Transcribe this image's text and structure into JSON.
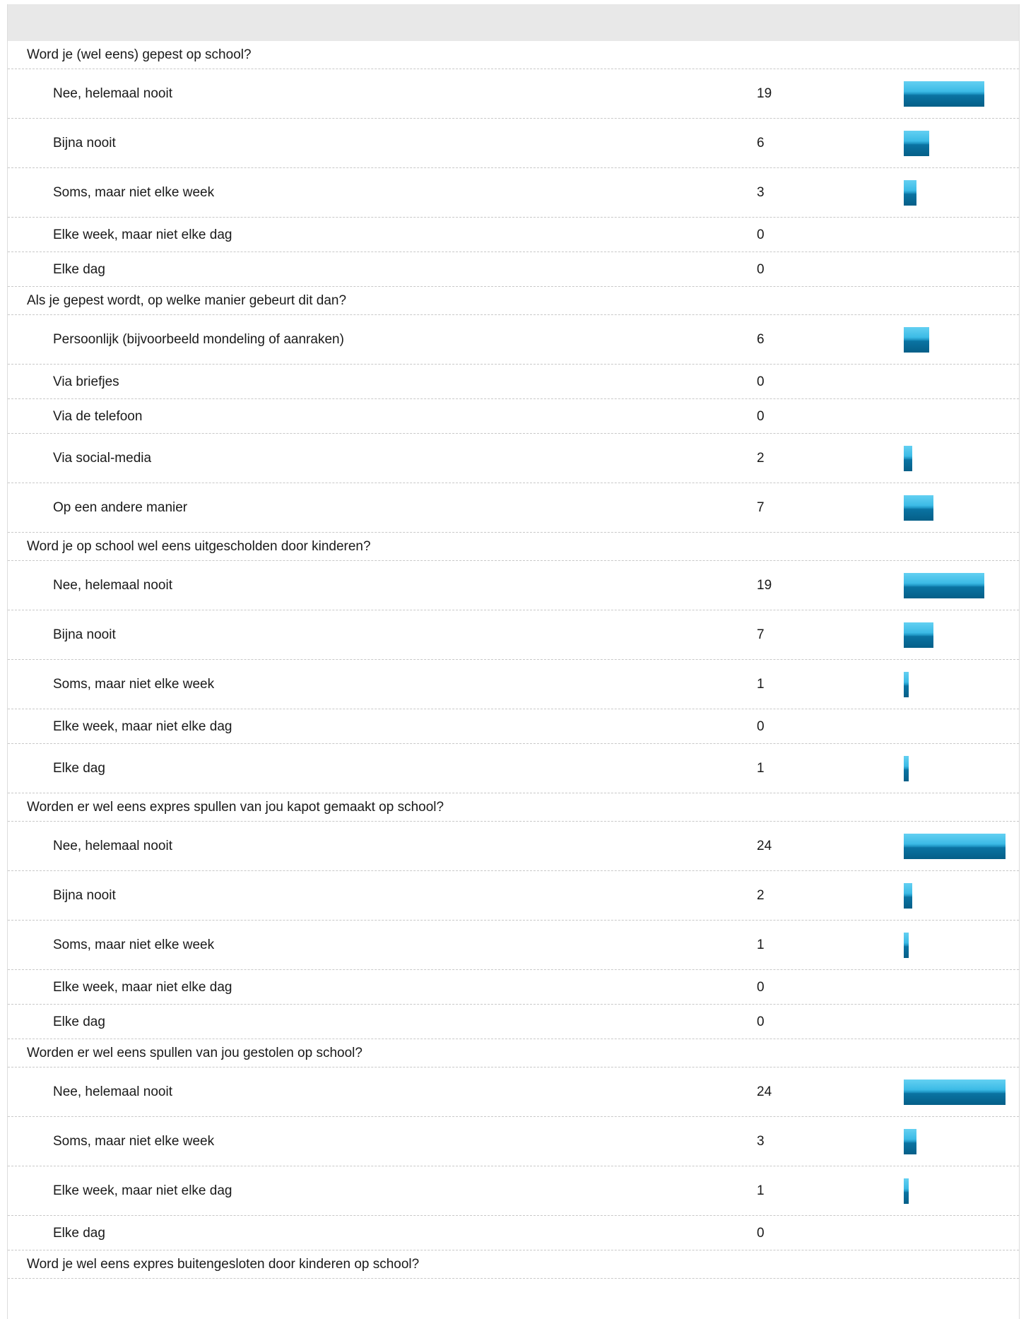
{
  "chart_data": {
    "type": "bar",
    "orientation": "horizontal",
    "max_value": 24,
    "bar_color": "#1a9ad0",
    "questions": [
      {
        "question": "Word je (wel eens) gepest op school?",
        "answers": [
          {
            "label": "Nee, helemaal nooit",
            "value": 19
          },
          {
            "label": "Bijna nooit",
            "value": 6
          },
          {
            "label": "Soms, maar niet elke week",
            "value": 3
          },
          {
            "label": "Elke week, maar niet elke dag",
            "value": 0
          },
          {
            "label": "Elke dag",
            "value": 0
          }
        ]
      },
      {
        "question": "Als je gepest wordt, op welke manier gebeurt dit dan?",
        "answers": [
          {
            "label": "Persoonlijk (bijvoorbeeld mondeling of aanraken)",
            "value": 6
          },
          {
            "label": "Via briefjes",
            "value": 0
          },
          {
            "label": "Via de telefoon",
            "value": 0
          },
          {
            "label": "Via social-media",
            "value": 2
          },
          {
            "label": "Op een andere manier",
            "value": 7
          }
        ]
      },
      {
        "question": "Word je op school wel eens uitgescholden door kinderen?",
        "answers": [
          {
            "label": "Nee, helemaal nooit",
            "value": 19
          },
          {
            "label": "Bijna nooit",
            "value": 7
          },
          {
            "label": "Soms, maar niet elke week",
            "value": 1
          },
          {
            "label": "Elke week, maar niet elke dag",
            "value": 0
          },
          {
            "label": "Elke dag",
            "value": 1
          }
        ]
      },
      {
        "question": "Worden er wel eens expres spullen van jou kapot gemaakt op school?",
        "answers": [
          {
            "label": "Nee, helemaal nooit",
            "value": 24
          },
          {
            "label": "Bijna nooit",
            "value": 2
          },
          {
            "label": "Soms, maar niet elke week",
            "value": 1
          },
          {
            "label": "Elke week, maar niet elke dag",
            "value": 0
          },
          {
            "label": "Elke dag",
            "value": 0
          }
        ]
      },
      {
        "question": "Worden er wel eens spullen van jou gestolen op school?",
        "answers": [
          {
            "label": "Nee, helemaal nooit",
            "value": 24
          },
          {
            "label": "Soms, maar niet elke week",
            "value": 3
          },
          {
            "label": "Elke week, maar niet elke dag",
            "value": 1
          },
          {
            "label": "Elke dag",
            "value": 0
          }
        ]
      },
      {
        "question": "Word je wel eens expres buitengesloten door kinderen op school?",
        "answers": []
      }
    ]
  }
}
